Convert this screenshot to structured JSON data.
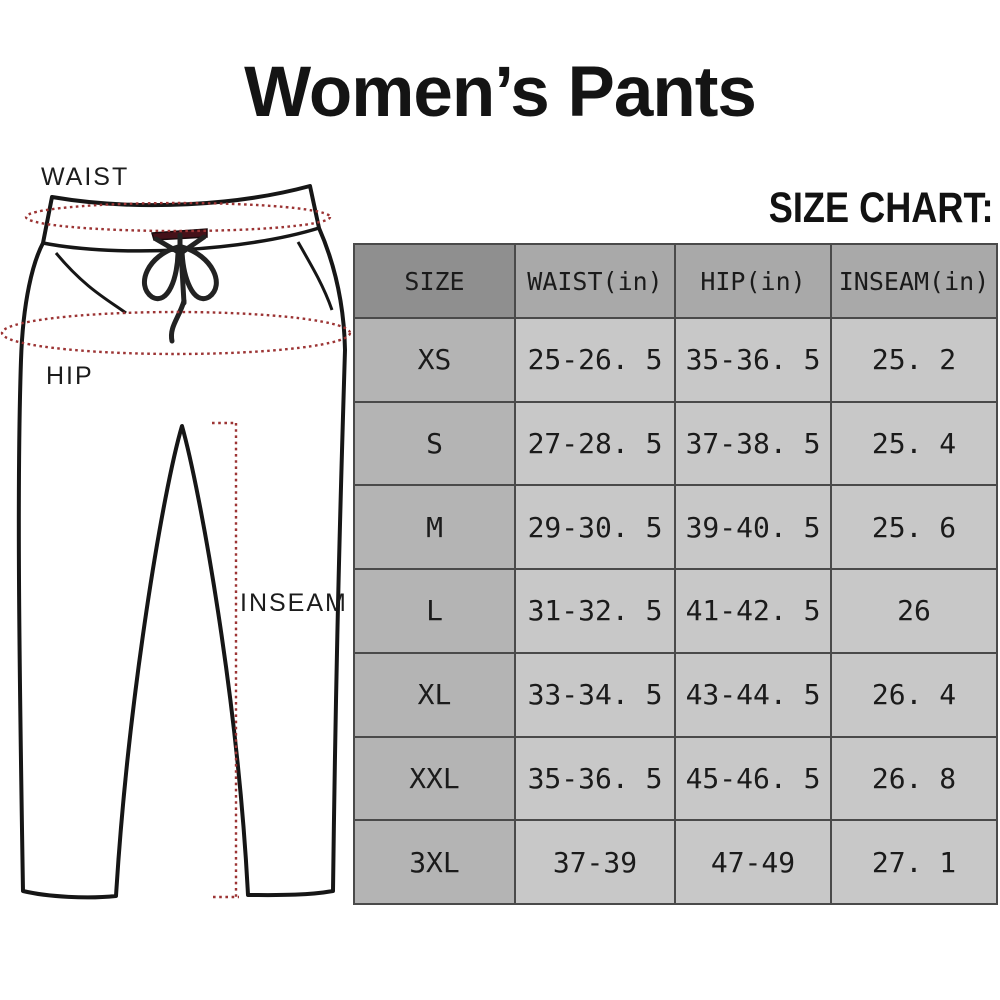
{
  "title": "Women’s Pants",
  "size_chart_heading": "SIZE CHART:",
  "diagram": {
    "waist_label": "WAIST",
    "hip_label": "HIP",
    "inseam_label": "INSEAM",
    "annotation_color": "#9c3434",
    "outline_color": "#161616",
    "drawstring_bar_color": "#451119"
  },
  "chart_data": {
    "type": "table",
    "title": "SIZE CHART:",
    "columns": [
      "SIZE",
      "WAIST(in)",
      "HIP(in)",
      "INSEAM(in)"
    ],
    "rows": [
      [
        "XS",
        "25-26. 5",
        "35-36. 5",
        "25. 2"
      ],
      [
        "S",
        "27-28. 5",
        "37-38. 5",
        "25. 4"
      ],
      [
        "M",
        "29-30. 5",
        "39-40. 5",
        "25. 6"
      ],
      [
        "L",
        "31-32. 5",
        "41-42. 5",
        "26"
      ],
      [
        "XL",
        "33-34. 5",
        "43-44. 5",
        "26. 4"
      ],
      [
        "XXL",
        "35-36. 5",
        "45-46. 5",
        "26. 8"
      ],
      [
        "3XL",
        "37-39",
        "47-49",
        "27. 1"
      ]
    ]
  }
}
